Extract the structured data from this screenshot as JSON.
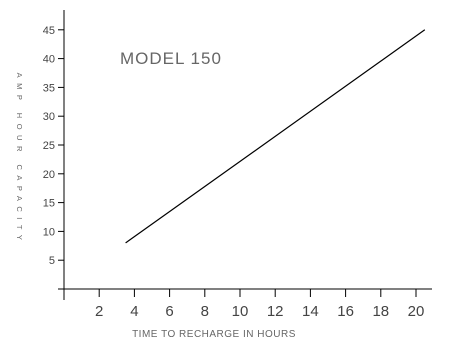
{
  "chart_data": {
    "type": "line",
    "title": "",
    "annotation": "MODEL 150",
    "xlabel": "TIME TO RECHARGE IN HOURS",
    "ylabel": "AMP HOUR CAPACITY",
    "x_ticks": [
      2,
      4,
      6,
      8,
      10,
      12,
      14,
      16,
      18,
      20
    ],
    "y_ticks": [
      5,
      10,
      15,
      20,
      25,
      30,
      35,
      40,
      45
    ],
    "xlim": [
      0,
      21
    ],
    "ylim": [
      0,
      49
    ],
    "grid": false,
    "series": [
      {
        "x": [
          3.5,
          20.5
        ],
        "y": [
          8,
          45
        ]
      }
    ],
    "colors": {
      "line": "#000000",
      "axis": "#000000",
      "text": "#555555"
    }
  }
}
